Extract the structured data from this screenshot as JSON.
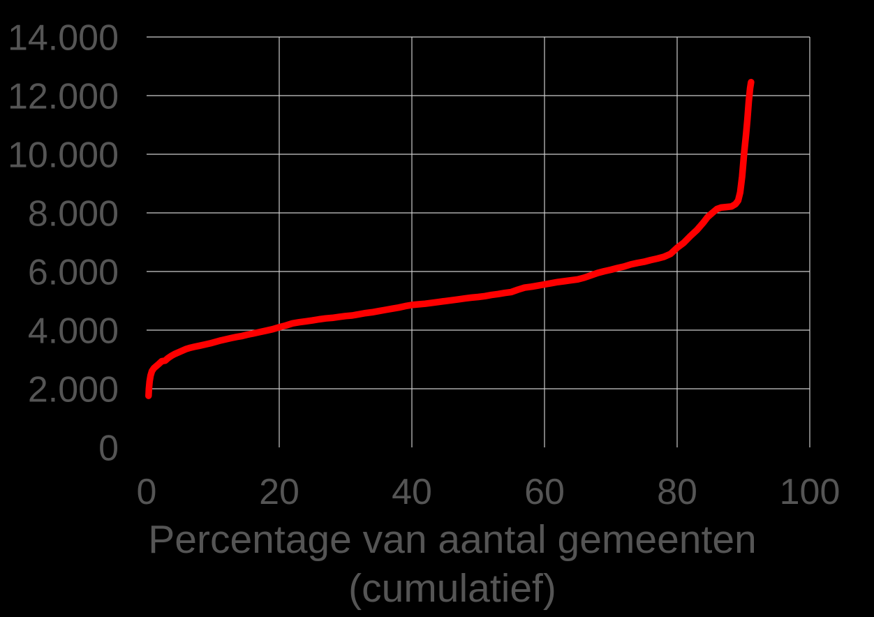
{
  "colors": {
    "background": "#000000",
    "grid": "#cccccc",
    "text": "#555555",
    "line": "#ff0000"
  },
  "chart_data": {
    "type": "line",
    "title": "",
    "xlabel_lines": [
      "Percentage van aantal gemeenten",
      "(cumulatief)"
    ],
    "ylabel": "",
    "xlim": [
      0,
      100
    ],
    "ylim": [
      0,
      14000
    ],
    "grid": {
      "horizontal": true,
      "vertical": true,
      "zero_gridlines": false
    },
    "legend": "none",
    "x_ticks": [
      {
        "value": 0,
        "label": "0"
      },
      {
        "value": 20,
        "label": "20"
      },
      {
        "value": 40,
        "label": "40"
      },
      {
        "value": 60,
        "label": "60"
      },
      {
        "value": 80,
        "label": "80"
      },
      {
        "value": 100,
        "label": "100"
      }
    ],
    "y_ticks": [
      {
        "value": 0,
        "label": "0"
      },
      {
        "value": 2000,
        "label": "2.000"
      },
      {
        "value": 4000,
        "label": "4.000"
      },
      {
        "value": 6000,
        "label": "6.000"
      },
      {
        "value": 8000,
        "label": "8.000"
      },
      {
        "value": 10000,
        "label": "10.000"
      },
      {
        "value": 12000,
        "label": "12.000"
      },
      {
        "value": 14000,
        "label": "14.000"
      }
    ],
    "series": [
      {
        "color": "#ff0000",
        "stroke_width": 9.5,
        "points": [
          [
            0.3,
            1760
          ],
          [
            0.35,
            2000
          ],
          [
            0.45,
            2250
          ],
          [
            0.6,
            2450
          ],
          [
            0.8,
            2600
          ],
          [
            1.1,
            2700
          ],
          [
            1.5,
            2780
          ],
          [
            1.9,
            2860
          ],
          [
            2.3,
            2940
          ],
          [
            2.8,
            2960
          ],
          [
            3.2,
            3040
          ],
          [
            3.7,
            3120
          ],
          [
            4.2,
            3180
          ],
          [
            4.8,
            3240
          ],
          [
            5.4,
            3300
          ],
          [
            6.0,
            3360
          ],
          [
            6.6,
            3400
          ],
          [
            7.2,
            3430
          ],
          [
            8.0,
            3470
          ],
          [
            8.8,
            3510
          ],
          [
            9.6,
            3550
          ],
          [
            10.4,
            3600
          ],
          [
            11.2,
            3650
          ],
          [
            12.0,
            3690
          ],
          [
            12.8,
            3730
          ],
          [
            13.6,
            3770
          ],
          [
            14.4,
            3800
          ],
          [
            15.2,
            3845
          ],
          [
            16.0,
            3880
          ],
          [
            17.0,
            3930
          ],
          [
            18.0,
            3980
          ],
          [
            19.0,
            4030
          ],
          [
            20.0,
            4100
          ],
          [
            21.0,
            4160
          ],
          [
            22.0,
            4230
          ],
          [
            23.0,
            4270
          ],
          [
            24.0,
            4300
          ],
          [
            25.0,
            4330
          ],
          [
            26.0,
            4370
          ],
          [
            27.0,
            4400
          ],
          [
            28.0,
            4420
          ],
          [
            29.0,
            4450
          ],
          [
            30.0,
            4480
          ],
          [
            31.0,
            4500
          ],
          [
            32.0,
            4540
          ],
          [
            33.0,
            4580
          ],
          [
            34.0,
            4610
          ],
          [
            35.0,
            4650
          ],
          [
            36.0,
            4690
          ],
          [
            37.0,
            4730
          ],
          [
            38.0,
            4770
          ],
          [
            39.0,
            4820
          ],
          [
            40.0,
            4860
          ],
          [
            41.0,
            4880
          ],
          [
            42.0,
            4900
          ],
          [
            43.0,
            4930
          ],
          [
            44.0,
            4960
          ],
          [
            45.0,
            4990
          ],
          [
            46.0,
            5020
          ],
          [
            47.0,
            5050
          ],
          [
            48.0,
            5080
          ],
          [
            49.0,
            5110
          ],
          [
            50.0,
            5130
          ],
          [
            51.0,
            5160
          ],
          [
            52.0,
            5200
          ],
          [
            53.0,
            5230
          ],
          [
            54.0,
            5270
          ],
          [
            55.0,
            5300
          ],
          [
            56.0,
            5380
          ],
          [
            57.0,
            5450
          ],
          [
            58.0,
            5480
          ],
          [
            59.0,
            5520
          ],
          [
            60.0,
            5560
          ],
          [
            61.0,
            5600
          ],
          [
            62.0,
            5640
          ],
          [
            63.0,
            5670
          ],
          [
            64.0,
            5700
          ],
          [
            65.0,
            5730
          ],
          [
            66.0,
            5790
          ],
          [
            67.0,
            5870
          ],
          [
            68.0,
            5950
          ],
          [
            69.0,
            6010
          ],
          [
            70.0,
            6060
          ],
          [
            71.0,
            6120
          ],
          [
            72.0,
            6170
          ],
          [
            73.0,
            6240
          ],
          [
            74.0,
            6290
          ],
          [
            75.0,
            6330
          ],
          [
            76.0,
            6390
          ],
          [
            77.0,
            6440
          ],
          [
            78.0,
            6500
          ],
          [
            79.0,
            6600
          ],
          [
            80.0,
            6810
          ],
          [
            81.0,
            6980
          ],
          [
            82.0,
            7210
          ],
          [
            83.0,
            7420
          ],
          [
            84.0,
            7680
          ],
          [
            84.6,
            7860
          ],
          [
            85.3,
            8000
          ],
          [
            86.0,
            8130
          ],
          [
            86.6,
            8180
          ],
          [
            87.4,
            8200
          ],
          [
            88.2,
            8220
          ],
          [
            88.8,
            8300
          ],
          [
            89.2,
            8420
          ],
          [
            89.5,
            8700
          ],
          [
            89.8,
            9240
          ],
          [
            90.1,
            10020
          ],
          [
            90.4,
            10700
          ],
          [
            90.6,
            11200
          ],
          [
            90.8,
            11800
          ],
          [
            91.0,
            12250
          ],
          [
            91.15,
            12460
          ]
        ]
      }
    ]
  }
}
